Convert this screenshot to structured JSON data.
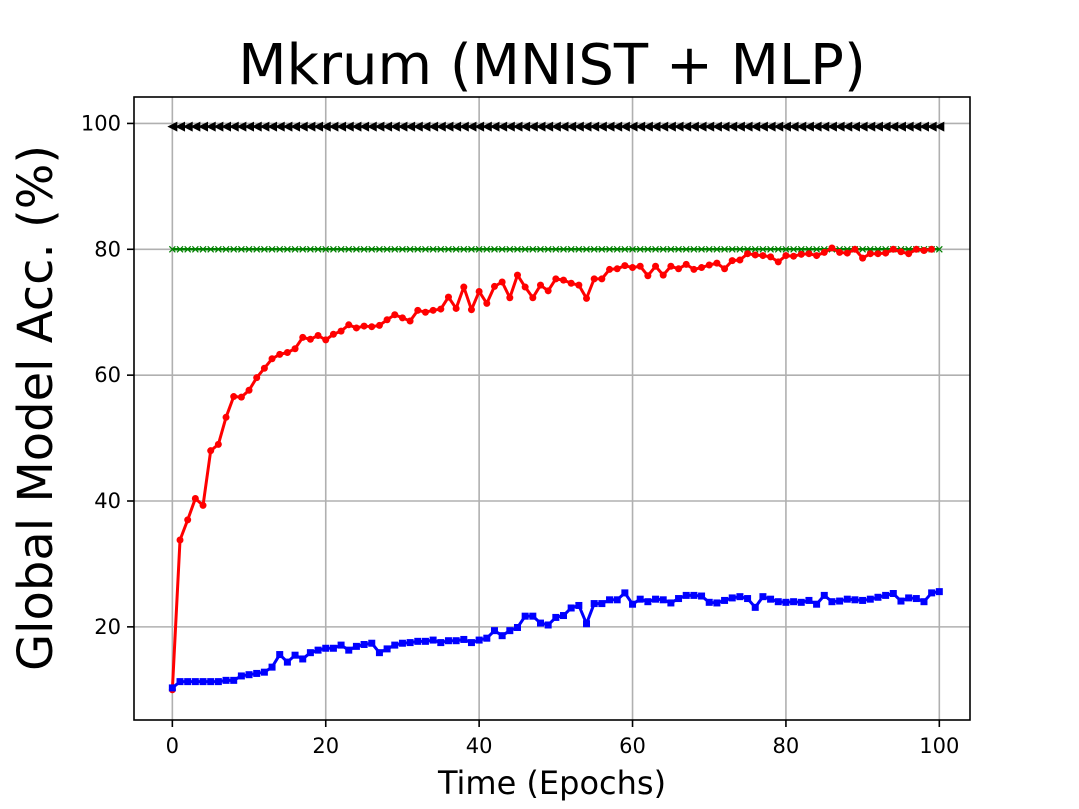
{
  "chart_data": {
    "type": "line",
    "title": "Mkrum (MNIST + MLP)",
    "xlabel": "Time (Epochs)",
    "ylabel": "Global Model Acc. (%)",
    "xlim": [
      -5,
      104
    ],
    "ylim": [
      5.2,
      104.2
    ],
    "xticks": [
      "0",
      "20",
      "40",
      "60",
      "80",
      "100"
    ],
    "yticks": [
      "20",
      "40",
      "60",
      "80",
      "100"
    ],
    "grid": true,
    "legend": "none",
    "series": [
      {
        "color": "#000000",
        "marker": "triangle-left",
        "line_width": 2,
        "marker_size": 5,
        "x_start": 0,
        "x_step": 1,
        "values": [
          99.5,
          99.5,
          99.5,
          99.5,
          99.5,
          99.5,
          99.5,
          99.5,
          99.5,
          99.5,
          99.5,
          99.5,
          99.5,
          99.5,
          99.5,
          99.5,
          99.5,
          99.5,
          99.5,
          99.5,
          99.5,
          99.5,
          99.5,
          99.5,
          99.5,
          99.5,
          99.5,
          99.5,
          99.5,
          99.5,
          99.5,
          99.5,
          99.5,
          99.5,
          99.5,
          99.5,
          99.5,
          99.5,
          99.5,
          99.5,
          99.5,
          99.5,
          99.5,
          99.5,
          99.5,
          99.5,
          99.5,
          99.5,
          99.5,
          99.5,
          99.5,
          99.5,
          99.5,
          99.5,
          99.5,
          99.5,
          99.5,
          99.5,
          99.5,
          99.5,
          99.5,
          99.5,
          99.5,
          99.5,
          99.5,
          99.5,
          99.5,
          99.5,
          99.5,
          99.5,
          99.5,
          99.5,
          99.5,
          99.5,
          99.5,
          99.5,
          99.5,
          99.5,
          99.5,
          99.5,
          99.5,
          99.5,
          99.5,
          99.5,
          99.5,
          99.5,
          99.5,
          99.5,
          99.5,
          99.5,
          99.5,
          99.5,
          99.5,
          99.5,
          99.5,
          99.5,
          99.5,
          99.5,
          99.5,
          99.5,
          99.5
        ]
      },
      {
        "color": "#008000",
        "marker": "x",
        "line_width": 2.5,
        "marker_size": 3,
        "x_start": 0,
        "x_step": 1,
        "values": [
          80,
          80,
          80,
          80,
          80,
          80,
          80,
          80,
          80,
          80,
          80,
          80,
          80,
          80,
          80,
          80,
          80,
          80,
          80,
          80,
          80,
          80,
          80,
          80,
          80,
          80,
          80,
          80,
          80,
          80,
          80,
          80,
          80,
          80,
          80,
          80,
          80,
          80,
          80,
          80,
          80,
          80,
          80,
          80,
          80,
          80,
          80,
          80,
          80,
          80,
          80,
          80,
          80,
          80,
          80,
          80,
          80,
          80,
          80,
          80,
          80,
          80,
          80,
          80,
          80,
          80,
          80,
          80,
          80,
          80,
          80,
          80,
          80,
          80,
          80,
          80,
          80,
          80,
          80,
          80,
          80,
          80,
          80,
          80,
          80,
          80,
          80,
          80,
          80,
          80,
          80,
          80,
          80,
          80,
          80,
          80,
          80,
          80,
          80,
          80,
          80
        ]
      },
      {
        "color": "#ff0000",
        "marker": "circle",
        "line_width": 3,
        "marker_size": 3.5,
        "x_start": 0,
        "x_step": 1,
        "values": [
          10.0,
          33.8,
          37.0,
          40.4,
          39.3,
          48.0,
          49.0,
          53.3,
          56.6,
          56.5,
          57.6,
          59.6,
          61.1,
          62.6,
          63.3,
          63.6,
          64.2,
          66.0,
          65.7,
          66.3,
          65.6,
          66.5,
          67.0,
          68.0,
          67.5,
          67.8,
          67.7,
          67.9,
          68.8,
          69.6,
          69.1,
          68.6,
          70.3,
          70.0,
          70.3,
          70.5,
          72.4,
          70.6,
          74.0,
          70.4,
          73.3,
          71.4,
          74.1,
          74.8,
          72.3,
          75.9,
          74.0,
          72.3,
          74.3,
          73.4,
          75.3,
          75.1,
          74.6,
          74.3,
          72.2,
          75.3,
          75.3,
          76.8,
          76.9,
          77.4,
          77.1,
          77.3,
          75.8,
          77.3,
          75.9,
          77.3,
          76.9,
          77.6,
          76.8,
          77.1,
          77.5,
          77.8,
          76.9,
          78.2,
          78.3,
          79.3,
          79.1,
          79.0,
          78.8,
          78.0,
          79.0,
          78.9,
          79.2,
          79.3,
          79.0,
          79.5,
          80.2,
          79.5,
          79.4,
          80.0,
          78.6,
          79.3,
          79.3,
          79.4,
          80.0,
          79.6,
          79.3,
          80.0,
          79.8,
          80.0
        ]
      },
      {
        "color": "#0000ff",
        "marker": "square",
        "line_width": 3,
        "marker_size": 3.5,
        "x_start": 0,
        "x_step": 1,
        "values": [
          10.3,
          11.3,
          11.3,
          11.3,
          11.3,
          11.3,
          11.3,
          11.5,
          11.5,
          12.2,
          12.4,
          12.6,
          12.8,
          13.6,
          15.6,
          14.4,
          15.5,
          14.9,
          15.9,
          16.3,
          16.6,
          16.6,
          17.1,
          16.3,
          16.9,
          17.2,
          17.4,
          15.9,
          16.5,
          17.1,
          17.4,
          17.5,
          17.7,
          17.7,
          17.9,
          17.5,
          17.8,
          17.8,
          18.0,
          17.5,
          17.9,
          18.2,
          19.4,
          18.6,
          19.4,
          19.9,
          21.7,
          21.7,
          20.6,
          20.3,
          21.5,
          21.8,
          23.0,
          23.4,
          20.5,
          23.7,
          23.7,
          24.3,
          24.3,
          25.4,
          23.6,
          24.4,
          24.0,
          24.4,
          24.3,
          23.8,
          24.5,
          25.0,
          25.0,
          24.9,
          23.9,
          23.8,
          24.2,
          24.6,
          24.8,
          24.5,
          23.1,
          24.8,
          24.4,
          24.0,
          23.9,
          24.0,
          23.9,
          24.2,
          23.6,
          25.0,
          24.0,
          24.1,
          24.4,
          24.3,
          24.2,
          24.4,
          24.7,
          25.0,
          25.3,
          24.1,
          24.6,
          24.5,
          24.0,
          25.4,
          25.6
        ]
      }
    ]
  }
}
